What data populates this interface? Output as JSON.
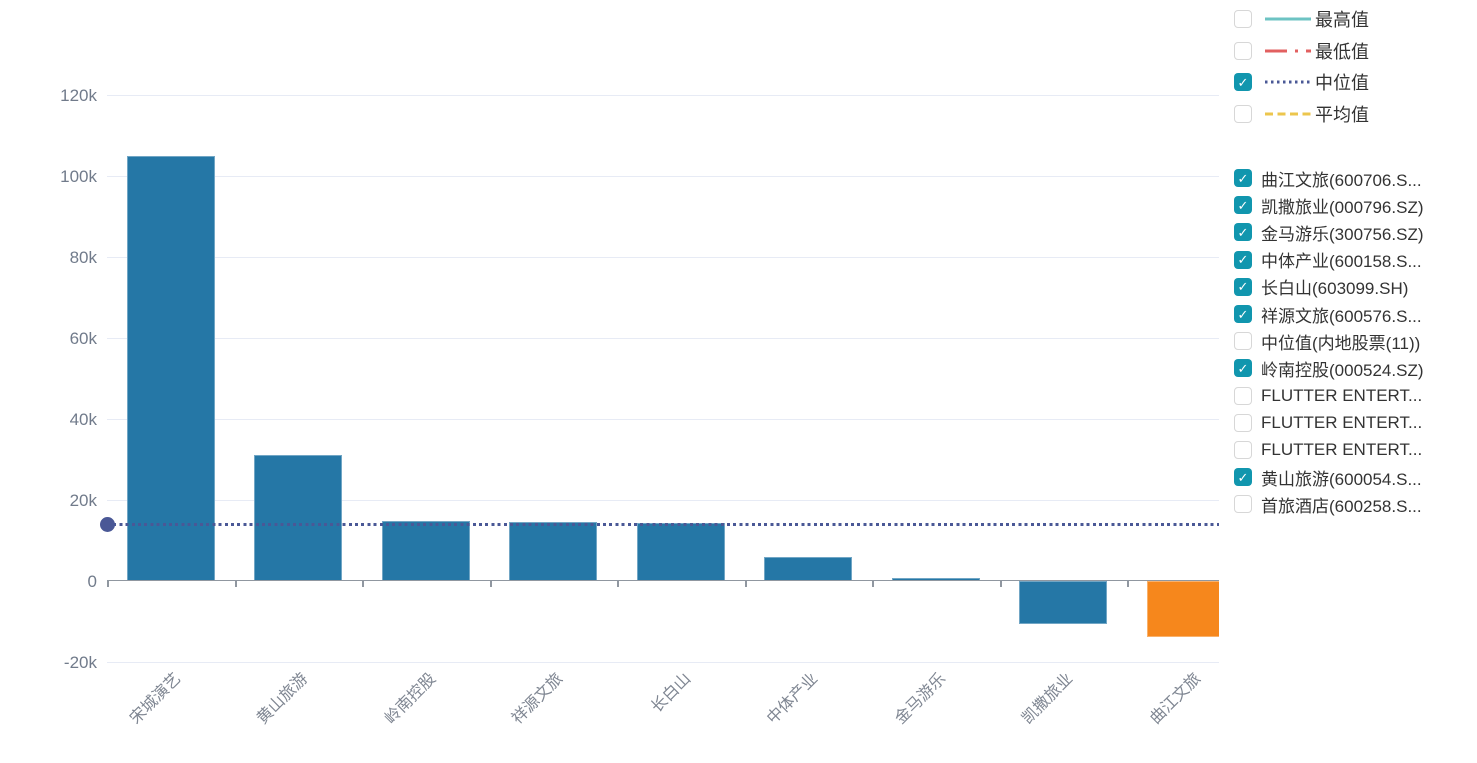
{
  "chart_data": {
    "type": "bar",
    "categories": [
      "宋城演艺",
      "黄山旅游",
      "岭南控股",
      "祥源文旅",
      "长白山",
      "中体产业",
      "金马游乐",
      "凯撒旅业",
      "曲江文旅"
    ],
    "values": [
      104800,
      31100,
      14700,
      14500,
      14200,
      6000,
      800,
      -10700,
      -13900
    ],
    "highlight_index": 8,
    "yticks": [
      {
        "value": 120000,
        "label": "120k"
      },
      {
        "value": 100000,
        "label": "100k"
      },
      {
        "value": 80000,
        "label": "80k"
      },
      {
        "value": 60000,
        "label": "60k"
      },
      {
        "value": 40000,
        "label": "40k"
      },
      {
        "value": 20000,
        "label": "20k"
      },
      {
        "value": 0,
        "label": "0"
      },
      {
        "value": -20000,
        "label": "-20k"
      }
    ],
    "ylim": [
      -20000,
      120000
    ],
    "grid": true,
    "legend_position": "right",
    "median_line": {
      "label": "中位值",
      "value": 14300
    }
  },
  "legend": {
    "stat_lines": [
      {
        "label": "最高值",
        "color": "#6dc3c3",
        "dash": "solid",
        "checked": false
      },
      {
        "label": "最低值",
        "color": "#e26060",
        "dash": "dash-dot",
        "checked": false
      },
      {
        "label": "中位值",
        "color": "#4a5896",
        "dash": "dotted",
        "checked": true
      },
      {
        "label": "平均值",
        "color": "#ecc64d",
        "dash": "dashed",
        "checked": false
      }
    ],
    "series_items": [
      {
        "label": "曲江文旅(600706.S...",
        "checked": true
      },
      {
        "label": "凯撒旅业(000796.SZ)",
        "checked": true
      },
      {
        "label": "金马游乐(300756.SZ)",
        "checked": true
      },
      {
        "label": "中体产业(600158.S...",
        "checked": true
      },
      {
        "label": "长白山(603099.SH)",
        "checked": true
      },
      {
        "label": "祥源文旅(600576.S...",
        "checked": true
      },
      {
        "label": "中位值(内地股票(11))",
        "checked": false
      },
      {
        "label": "岭南控股(000524.SZ)",
        "checked": true
      },
      {
        "label": "FLUTTER ENTERT...",
        "checked": false
      },
      {
        "label": "FLUTTER ENTERT...",
        "checked": false
      },
      {
        "label": "FLUTTER ENTERT...",
        "checked": false
      },
      {
        "label": "黄山旅游(600054.S...",
        "checked": true
      },
      {
        "label": "首旅酒店(600258.S...",
        "checked": false
      }
    ],
    "checkmark": "✓"
  },
  "colors": {
    "bar": "#2577a6",
    "bar_highlight": "#f6871c",
    "median_line": "#4a5896",
    "axis_line": "#9097a0",
    "gridline": "#e7ebf5",
    "ytick_text": "#717b8b",
    "xlabel_text": "#7f8692",
    "legend_text": "#333333",
    "checkbox_checked": "#1196ae",
    "checkbox_border": "#d7d7d7"
  }
}
